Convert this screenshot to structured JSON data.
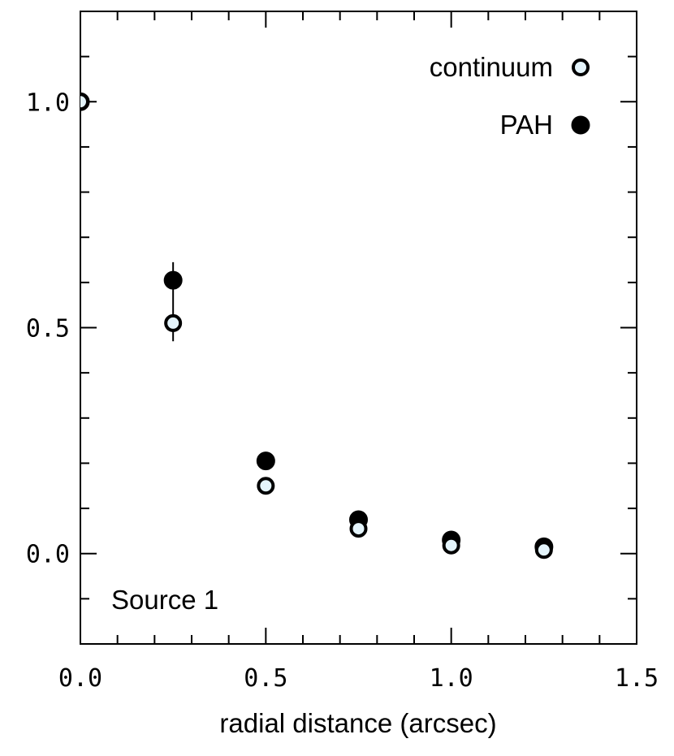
{
  "chart_data": {
    "type": "scatter",
    "xlabel": "radial distance (arcsec)",
    "ylabel": "",
    "xlim": [
      0.0,
      1.5
    ],
    "ylim": [
      -0.2,
      1.2
    ],
    "x_ticks": [
      {
        "value": 0.0,
        "label": "0.0"
      },
      {
        "value": 0.5,
        "label": "0.5"
      },
      {
        "value": 1.0,
        "label": "1.0"
      },
      {
        "value": 1.5,
        "label": "1.5"
      }
    ],
    "y_ticks": [
      {
        "value": 0.0,
        "label": "0.0"
      },
      {
        "value": 0.5,
        "label": "0.5"
      },
      {
        "value": 1.0,
        "label": "1.0"
      }
    ],
    "minor_tick_step_x": 0.1,
    "minor_tick_step_y": 0.1,
    "grid": false,
    "legend_position": "top-right",
    "annotation": "Source 1",
    "series": [
      {
        "name": "PAH",
        "marker": "filled-circle",
        "color": "#000000",
        "points": [
          {
            "x": 0.0,
            "y": 1.0
          },
          {
            "x": 0.25,
            "y": 0.605
          },
          {
            "x": 0.5,
            "y": 0.205
          },
          {
            "x": 0.75,
            "y": 0.075
          },
          {
            "x": 1.0,
            "y": 0.03
          },
          {
            "x": 1.25,
            "y": 0.015
          }
        ]
      },
      {
        "name": "continuum",
        "marker": "open-circle",
        "color": "#000000",
        "fill": "#e4f4fb",
        "points": [
          {
            "x": 0.0,
            "y": 1.0
          },
          {
            "x": 0.25,
            "y": 0.51
          },
          {
            "x": 0.5,
            "y": 0.15
          },
          {
            "x": 0.75,
            "y": 0.055
          },
          {
            "x": 1.0,
            "y": 0.018
          },
          {
            "x": 1.25,
            "y": 0.008
          }
        ]
      }
    ],
    "error_bars": [
      {
        "x": 0.25,
        "low": 0.47,
        "high": 0.645
      }
    ]
  }
}
